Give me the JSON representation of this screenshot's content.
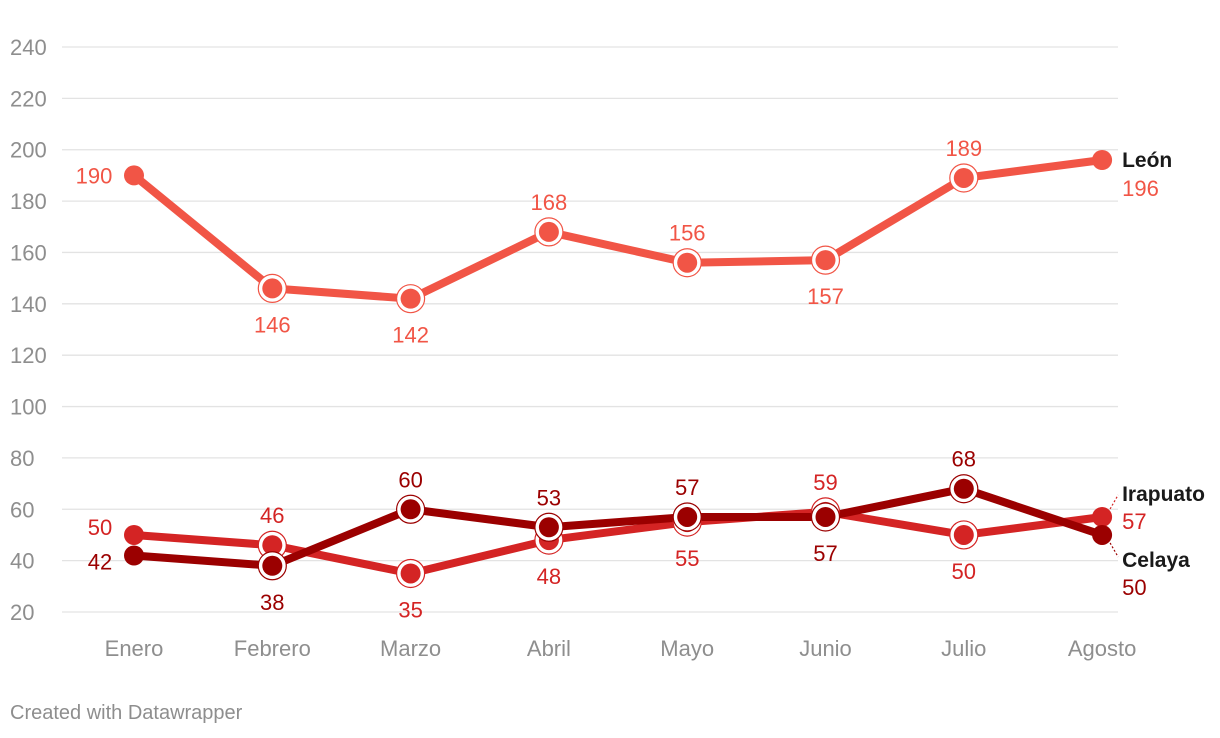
{
  "chart_data": {
    "type": "line",
    "categories": [
      "Enero",
      "Febrero",
      "Marzo",
      "Abril",
      "Mayo",
      "Junio",
      "Julio",
      "Agosto"
    ],
    "yticks": [
      20,
      40,
      60,
      80,
      100,
      120,
      140,
      160,
      180,
      200,
      220,
      240
    ],
    "ylim": [
      20,
      240
    ],
    "grid": true,
    "series": [
      {
        "name": "León",
        "color": "#f15546",
        "values": [
          190,
          146,
          142,
          168,
          156,
          157,
          189,
          196
        ]
      },
      {
        "name": "Irapuato",
        "color": "#d42424",
        "values": [
          50,
          46,
          35,
          48,
          55,
          59,
          50,
          57
        ]
      },
      {
        "name": "Celaya",
        "color": "#9b0000",
        "values": [
          42,
          38,
          60,
          53,
          57,
          57,
          68,
          50
        ]
      }
    ]
  },
  "credit": "Created with Datawrapper"
}
